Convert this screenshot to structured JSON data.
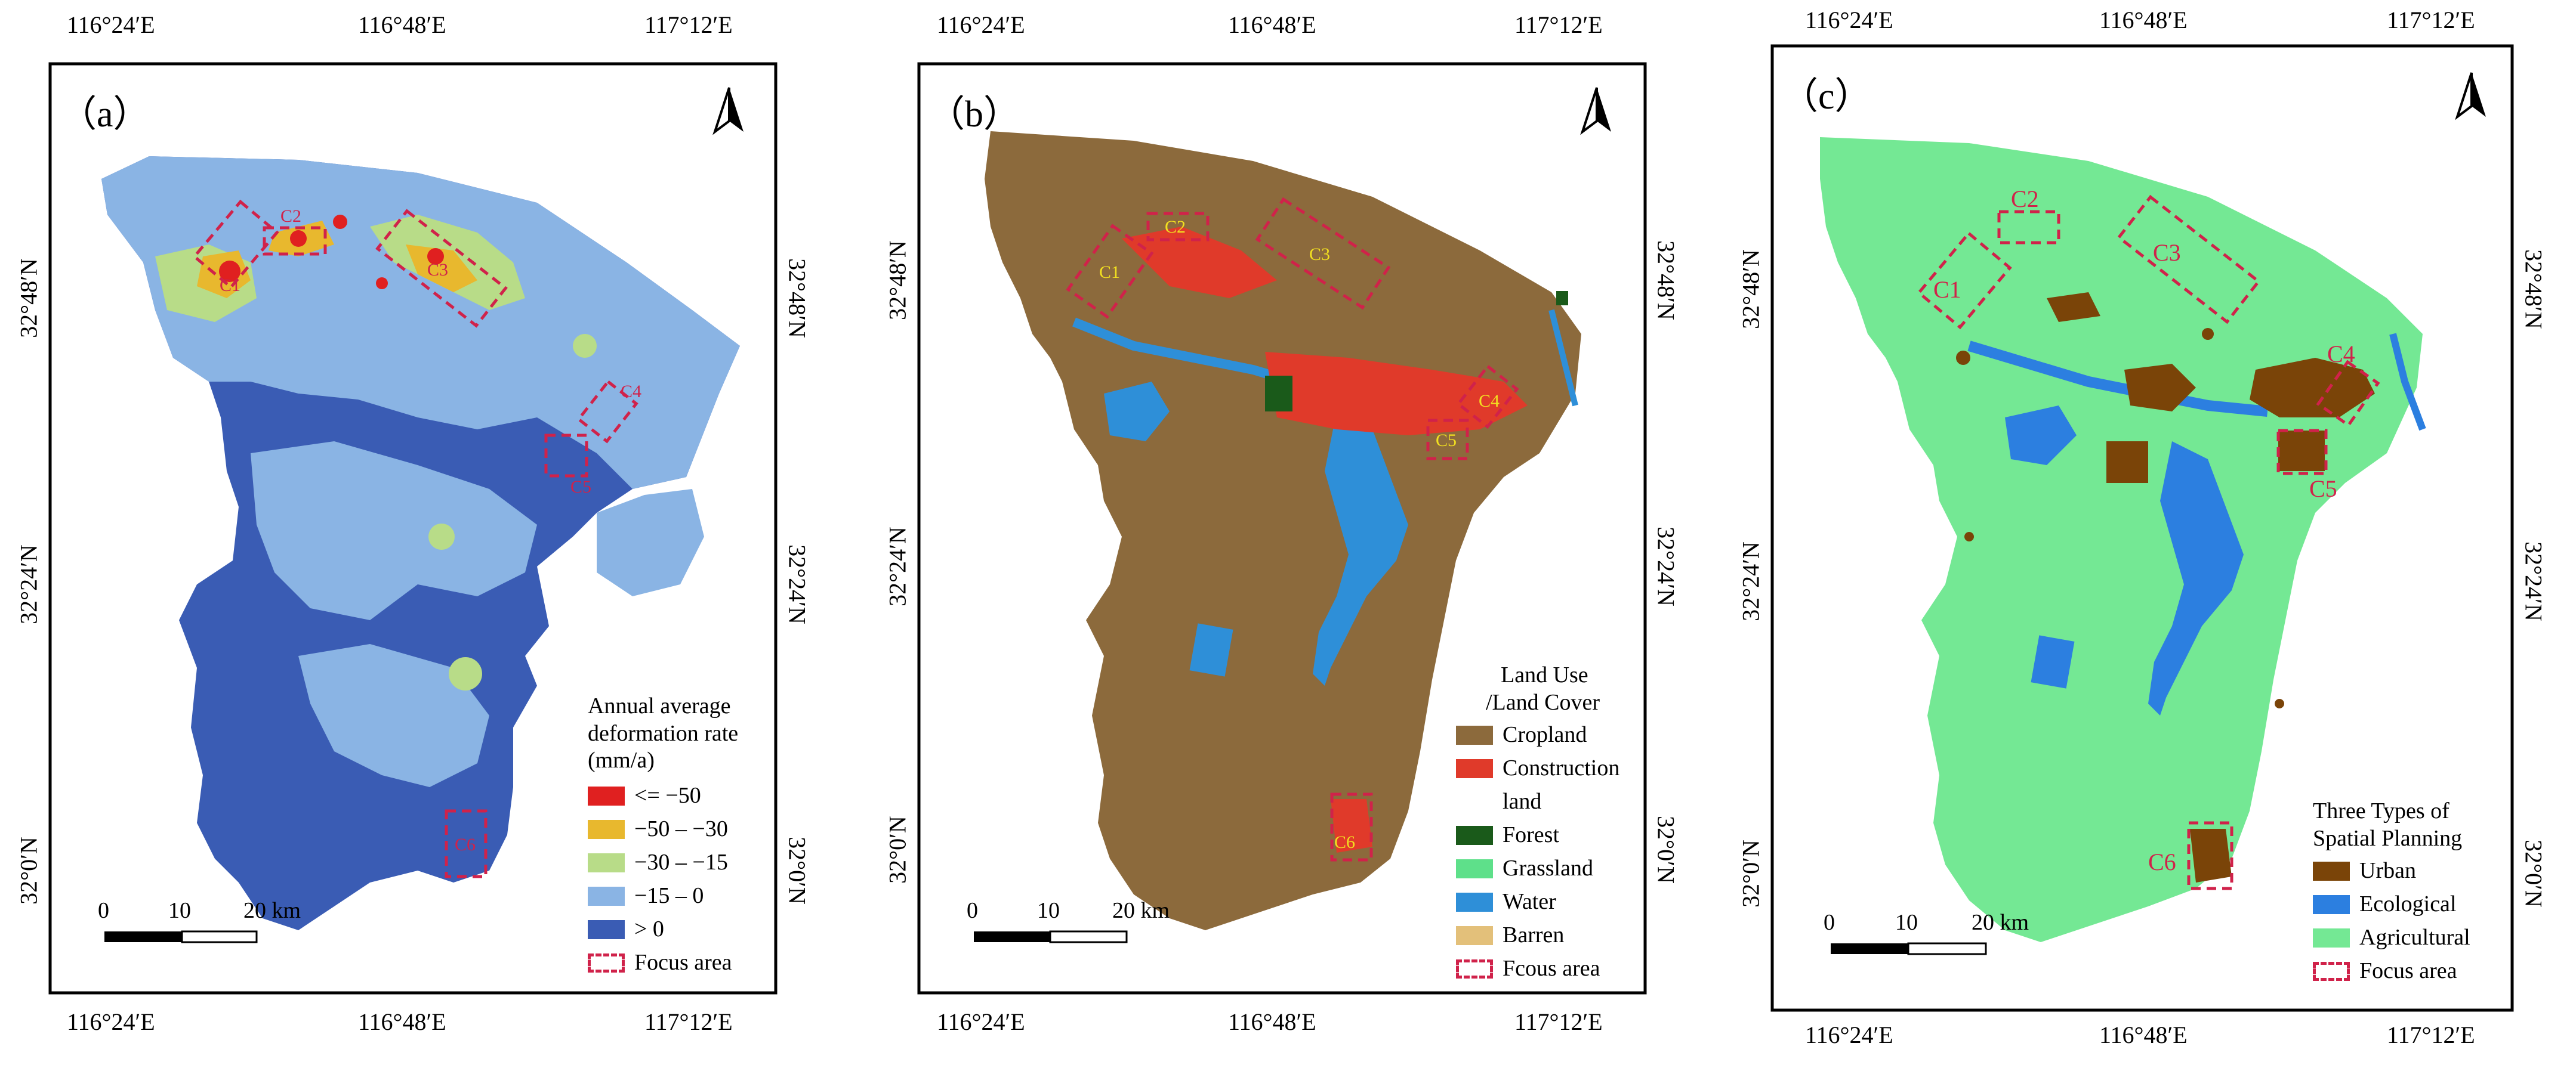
{
  "lon_labels": [
    "116°24′E",
    "116°48′E",
    "117°12′E"
  ],
  "lat_labels": [
    "32°48′N",
    "32°24′N",
    "32°0′N"
  ],
  "north_icon": "north-arrow-icon",
  "scale_bar": {
    "ticks": [
      "0",
      "10",
      "20 km"
    ]
  },
  "panels": [
    {
      "label": "（a）",
      "legend": {
        "title_lines": [
          "Annual average",
          "deformation rate",
          "(mm/a)"
        ],
        "items": [
          {
            "label": "<= −50",
            "color": "#e02020"
          },
          {
            "label": "−50 – −30",
            "color": "#e8b82e"
          },
          {
            "label": "−30 – −15",
            "color": "#b8dc88"
          },
          {
            "label": "−15 – 0",
            "color": "#8ab4e4"
          },
          {
            "label": "> 0",
            "color": "#3a5cb4"
          },
          {
            "label": "Focus area",
            "color": "#d0224a",
            "kind": "focus"
          }
        ]
      },
      "focus_areas": [
        "C1",
        "C2",
        "C3",
        "C4",
        "C5",
        "C6"
      ]
    },
    {
      "label": "（b）",
      "legend": {
        "title_lines": [
          "Land Use",
          "/Land Cover"
        ],
        "items": [
          {
            "label": "Cropland",
            "color": "#8c6a3c"
          },
          {
            "label": "Construction",
            "label2": "land",
            "color": "#e03a2a"
          },
          {
            "label": "Forest",
            "color": "#1a5a1a"
          },
          {
            "label": "Grassland",
            "color": "#5ee08a"
          },
          {
            "label": "Water",
            "color": "#2e8fd8"
          },
          {
            "label": "Barren",
            "color": "#e3c07a"
          },
          {
            "label": "Fcous area",
            "color": "#d0224a",
            "kind": "focus"
          }
        ]
      },
      "focus_areas": [
        "C1",
        "C2",
        "C3",
        "C4",
        "C5",
        "C6"
      ]
    },
    {
      "label": "（c）",
      "legend": {
        "title_lines": [
          "Three Types of",
          "Spatial Planning"
        ],
        "items": [
          {
            "label": "Urban",
            "color": "#7a4408"
          },
          {
            "label": "Ecological",
            "color": "#2c7fe0"
          },
          {
            "label": "Agricultural",
            "color": "#74e894"
          },
          {
            "label": "Focus area",
            "color": "#d0224a",
            "kind": "focus"
          }
        ]
      },
      "focus_areas": [
        "C1",
        "C2",
        "C3",
        "C4",
        "C5",
        "C6"
      ]
    }
  ],
  "colors": {
    "focus_box": "#d0224a",
    "deform_base": "#3a5cb4",
    "deform_light": "#8ab4e4",
    "cropland": "#8c6a3c",
    "construction": "#e03a2a",
    "water": "#2e8fd8",
    "agricultural": "#74e894",
    "urban": "#7a4408",
    "ecological": "#2c7fe0"
  }
}
